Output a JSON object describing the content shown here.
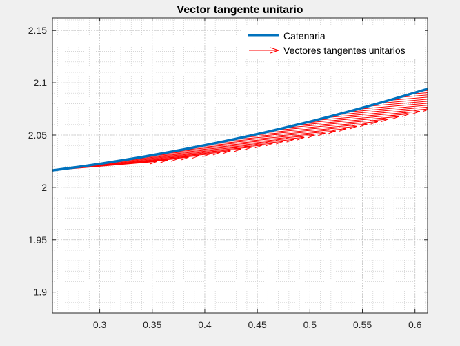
{
  "chart_data": {
    "type": "line",
    "title": "Vector tangente unitario",
    "xlabel": "",
    "ylabel": "",
    "xlim": [
      0.255,
      0.612
    ],
    "ylim": [
      1.88,
      2.162
    ],
    "x_ticks": [
      0.3,
      0.35,
      0.4,
      0.45,
      0.5,
      0.55,
      0.6
    ],
    "x_tick_labels": [
      "0.3",
      "0.35",
      "0.4",
      "0.45",
      "0.5",
      "0.55",
      "0.6"
    ],
    "y_ticks": [
      1.9,
      1.95,
      2,
      2.05,
      2.1,
      2.15
    ],
    "y_tick_labels": [
      "1.9",
      "1.95",
      "2",
      "2.05",
      "2.1",
      "2.15"
    ],
    "grid": "on (major and minor, dotted)",
    "legend": "top-right",
    "series": [
      {
        "name": "Catenaria",
        "kind": "line",
        "color": "#0072bd",
        "x": [
          0.255,
          0.28,
          0.3,
          0.32,
          0.34,
          0.36,
          0.38,
          0.4,
          0.42,
          0.44,
          0.46,
          0.48,
          0.5,
          0.52,
          0.54,
          0.56,
          0.58,
          0.6,
          0.612
        ],
        "y": [
          2.0163,
          2.0196,
          2.0225,
          2.0257,
          2.029,
          2.0326,
          2.0363,
          2.0403,
          2.0444,
          2.0487,
          2.0532,
          2.058,
          2.0629,
          2.068,
          2.0733,
          2.0789,
          2.0846,
          2.0906,
          2.0942
        ]
      },
      {
        "name": "Vectores tangentes unitarios",
        "kind": "quiver",
        "color": "#ff0000",
        "x_start": [
          0.255,
          0.265,
          0.275,
          0.285,
          0.295,
          0.305,
          0.315,
          0.325,
          0.335,
          0.345,
          0.355,
          0.365,
          0.375,
          0.385,
          0.395,
          0.405,
          0.415,
          0.425,
          0.435,
          0.445,
          0.455,
          0.465,
          0.475,
          0.485,
          0.495,
          0.505,
          0.515,
          0.525,
          0.535,
          0.545,
          0.555,
          0.565,
          0.575,
          0.585,
          0.595,
          0.605
        ],
        "dx": 0.0996,
        "dy_per_x": 0.085
      }
    ]
  }
}
